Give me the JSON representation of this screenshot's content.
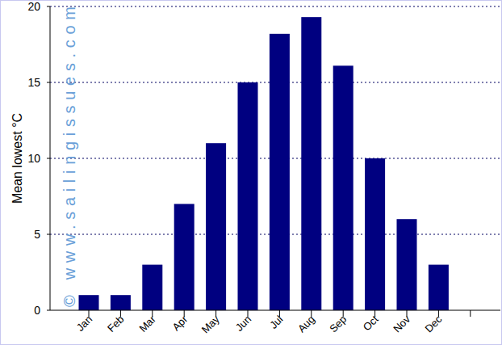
{
  "chart_data": {
    "type": "bar",
    "y_label": "Mean lowest °C",
    "categories": [
      "Jan",
      "Feb",
      "Mar",
      "Apr",
      "May",
      "Jun",
      "Jul",
      "Aug",
      "Sep",
      "Oct",
      "Nov",
      "Dec",
      null
    ],
    "values": [
      1,
      1,
      3,
      7,
      11,
      15,
      18.2,
      19.3,
      16.1,
      10,
      6,
      3,
      null
    ],
    "color": "#000080",
    "ylim": [
      0,
      20
    ],
    "yticks": [
      0,
      5,
      10,
      15,
      20
    ],
    "grid": true,
    "annotations": [
      "© www.sailingissues.com"
    ]
  }
}
